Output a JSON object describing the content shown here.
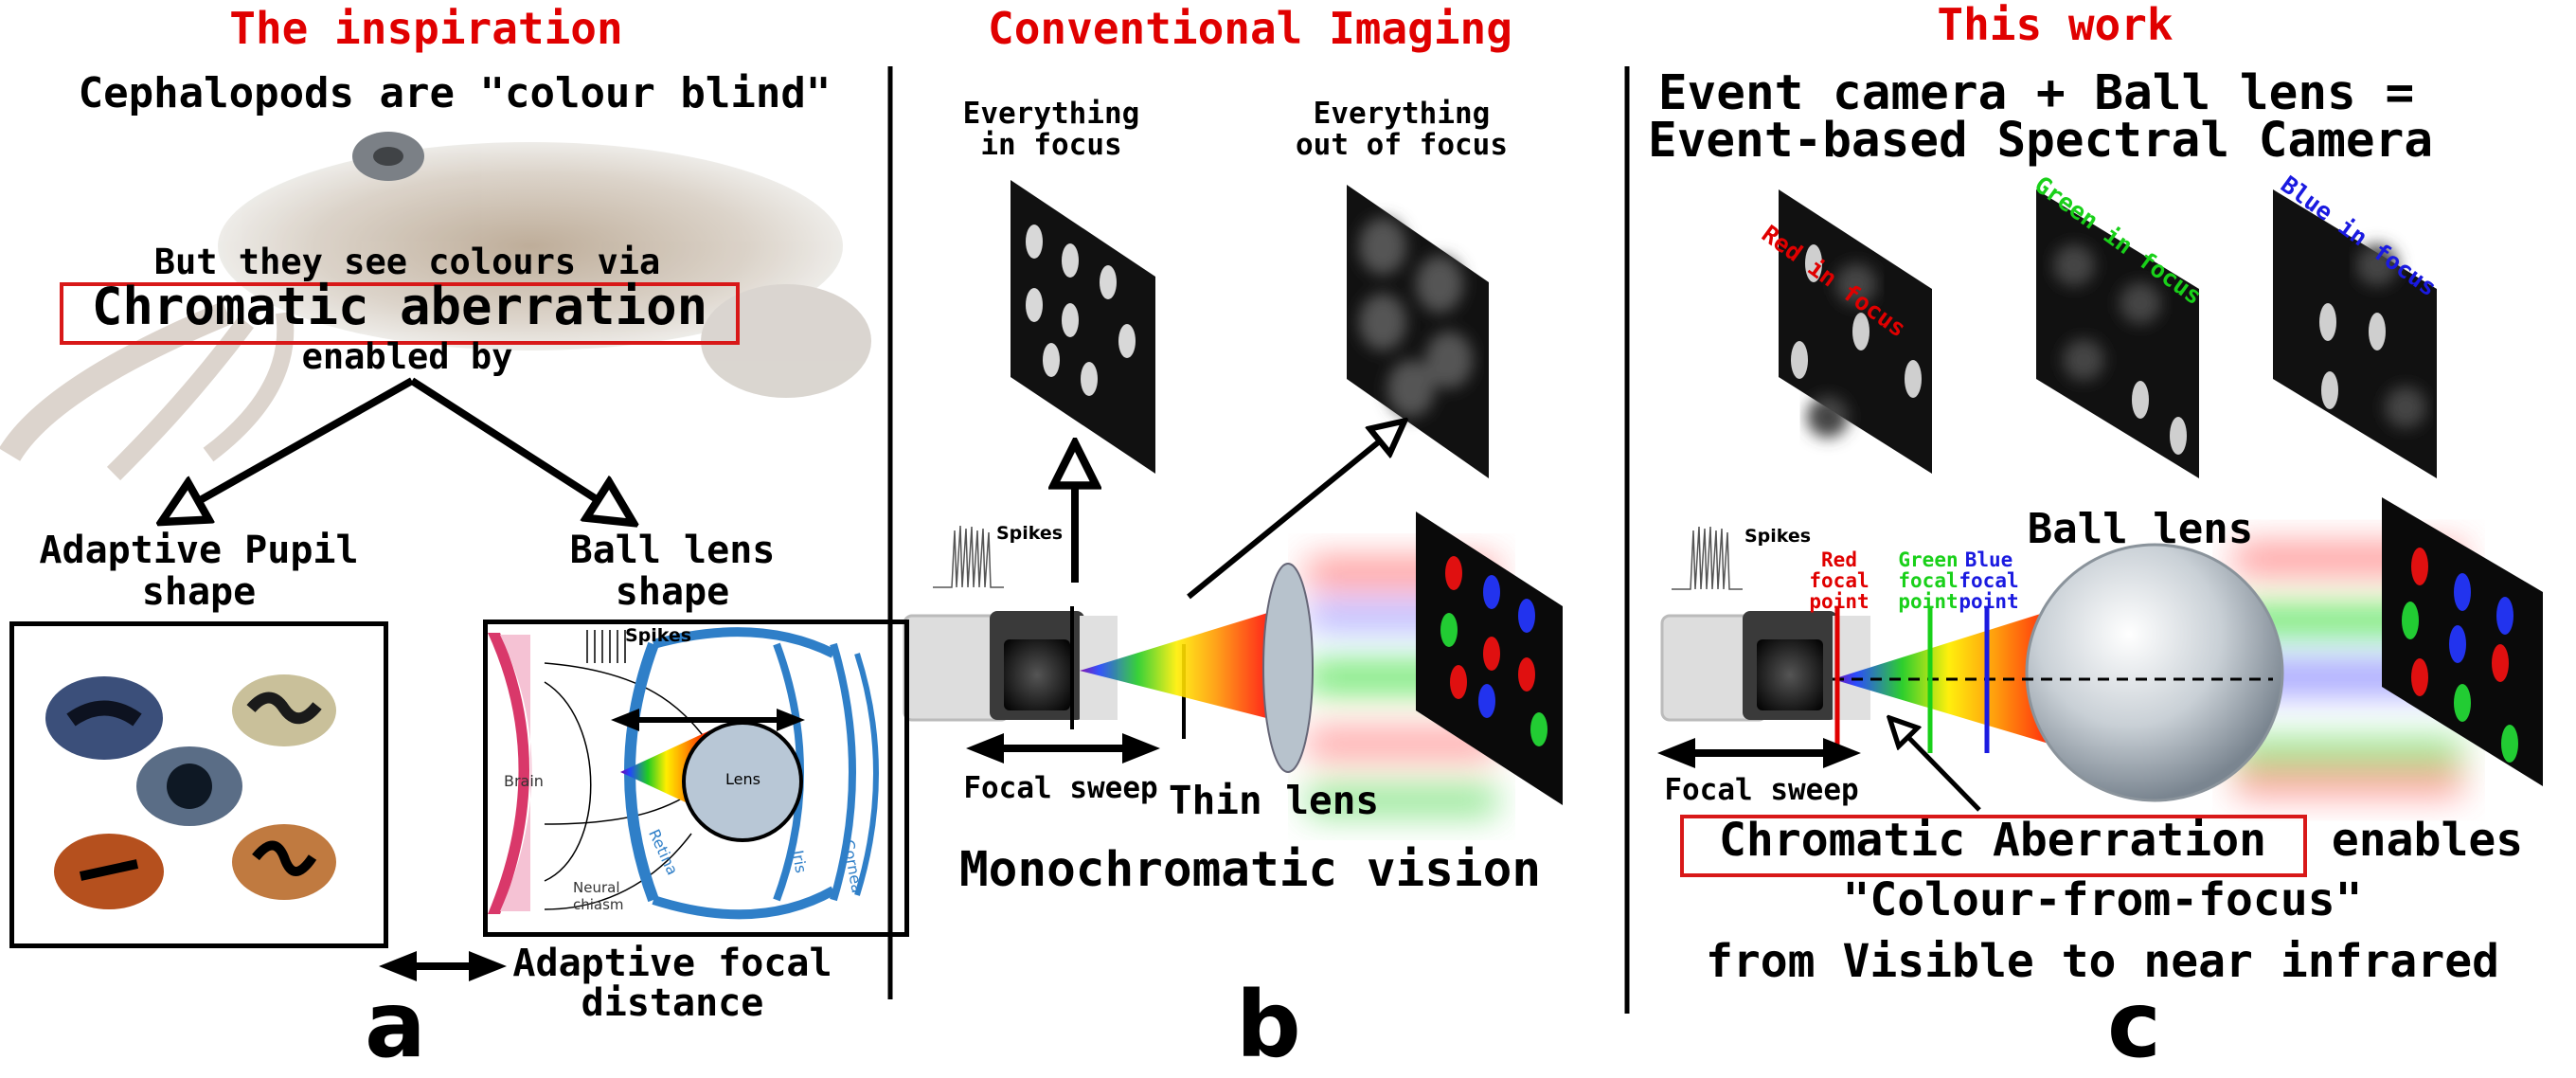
{
  "panel_a": {
    "heading": "The inspiration",
    "title": "Cephalopods are \"colour blind\"",
    "subtitle": "But they see colours via",
    "highlight": "Chromatic aberration",
    "enabled_by": "enabled by",
    "left_label_1": "Adaptive Pupil",
    "left_label_2": "shape",
    "right_label_1": "Ball lens",
    "right_label_2": "shape",
    "focal_label_1": "Adaptive focal",
    "focal_label_2": "distance",
    "eye_labels": {
      "spikes": "Spikes",
      "brain": "Brain",
      "lens": "Lens",
      "retina": "Retina",
      "iris": "Iris",
      "cornea": "Cornea",
      "chiasm_1": "Neural",
      "chiasm_2": "chiasm"
    },
    "letter": "a"
  },
  "panel_b": {
    "heading": "Conventional Imaging",
    "in_focus_1": "Everything",
    "in_focus_2": "in focus",
    "out_focus_1": "Everything",
    "out_focus_2": "out of focus",
    "spikes": "Spikes",
    "focal_sweep": "Focal sweep",
    "thin_lens": "Thin lens",
    "caption": "Monochromatic vision",
    "letter": "b"
  },
  "panel_c": {
    "heading": "This work",
    "title_1": "Event camera + Ball lens =",
    "title_2": "Event-based Spectral Camera",
    "red_focus": "Red in focus",
    "green_focus": "Green in focus",
    "blue_focus": "Blue in focus",
    "spikes": "Spikes",
    "ball_lens": "Ball lens",
    "red_point": "Red focal point",
    "green_point": "Green focal point",
    "blue_point": "Blue focal point",
    "focal_sweep": "Focal sweep",
    "highlight": "Chromatic Aberration",
    "enables": "enables",
    "caption_1": "\"Colour-from-focus\"",
    "caption_2": "from Visible to near infrared",
    "letter": "c"
  },
  "colors": {
    "heading": "#e00000",
    "red": "#e00000",
    "green": "#19d019",
    "blue": "#1a1ae0",
    "eye_blue": "#2f7fc8",
    "brain": "#f5c2d4"
  }
}
